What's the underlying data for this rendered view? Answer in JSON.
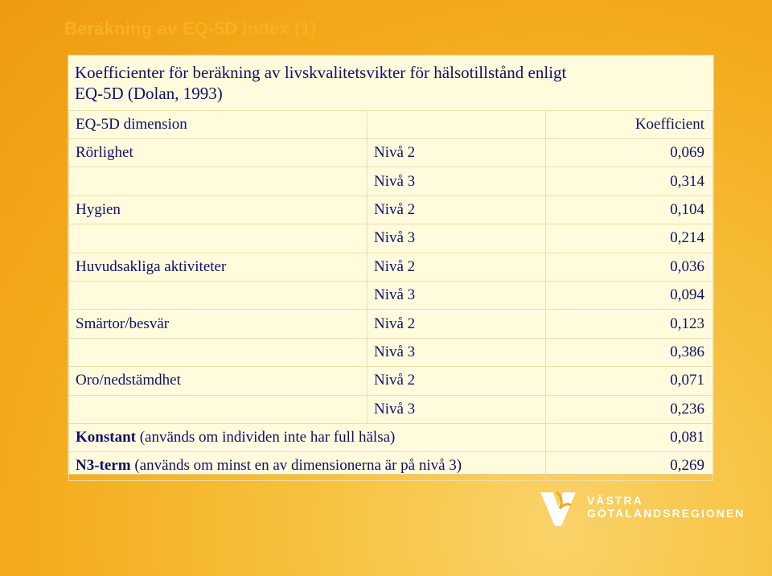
{
  "slide": {
    "title": "Beräkning av EQ-5D index (1)"
  },
  "caption": {
    "line1": "Koefficienter för beräkning av livskvalitetsvikter för hälsotillstånd enligt",
    "line2": "EQ-5D (Dolan, 1993)"
  },
  "table": {
    "headers": [
      "EQ-5D dimension",
      "",
      "Koefficient"
    ],
    "rows": [
      {
        "dimension": "Rörlighet",
        "level": "Nivå 2",
        "coef": "0,069"
      },
      {
        "dimension": "",
        "level": "Nivå 3",
        "coef": "0,314"
      },
      {
        "dimension": "Hygien",
        "level": "Nivå 2",
        "coef": "0,104"
      },
      {
        "dimension": "",
        "level": "Nivå 3",
        "coef": "0,214"
      },
      {
        "dimension": "Huvudsakliga aktiviteter",
        "level": "Nivå 2",
        "coef": "0,036"
      },
      {
        "dimension": "",
        "level": "Nivå 3",
        "coef": "0,094"
      },
      {
        "dimension": "Smärtor/besvär",
        "level": "Nivå 2",
        "coef": "0,123"
      },
      {
        "dimension": "",
        "level": "Nivå 3",
        "coef": "0,386"
      },
      {
        "dimension": "Oro/nedstämdhet",
        "level": "Nivå 2",
        "coef": "0,071"
      },
      {
        "dimension": "",
        "level": "Nivå 3",
        "coef": "0,236"
      }
    ],
    "konstant": {
      "bold": "Konstant",
      "rest": " (används om individen inte har full hälsa)",
      "coef": "0,081"
    },
    "n3term": {
      "bold": "N3-term",
      "rest": " (används om minst en av dimensionerna är på nivå 3)",
      "coef": "0,269"
    }
  },
  "logo": {
    "line1": "VÄSTRA",
    "line2": "GÖTALANDSREGIONEN"
  },
  "colors": {
    "background": "#f3a91b",
    "panel": "#fffbdc",
    "text": "#10106a",
    "title": "#f7b21d"
  }
}
